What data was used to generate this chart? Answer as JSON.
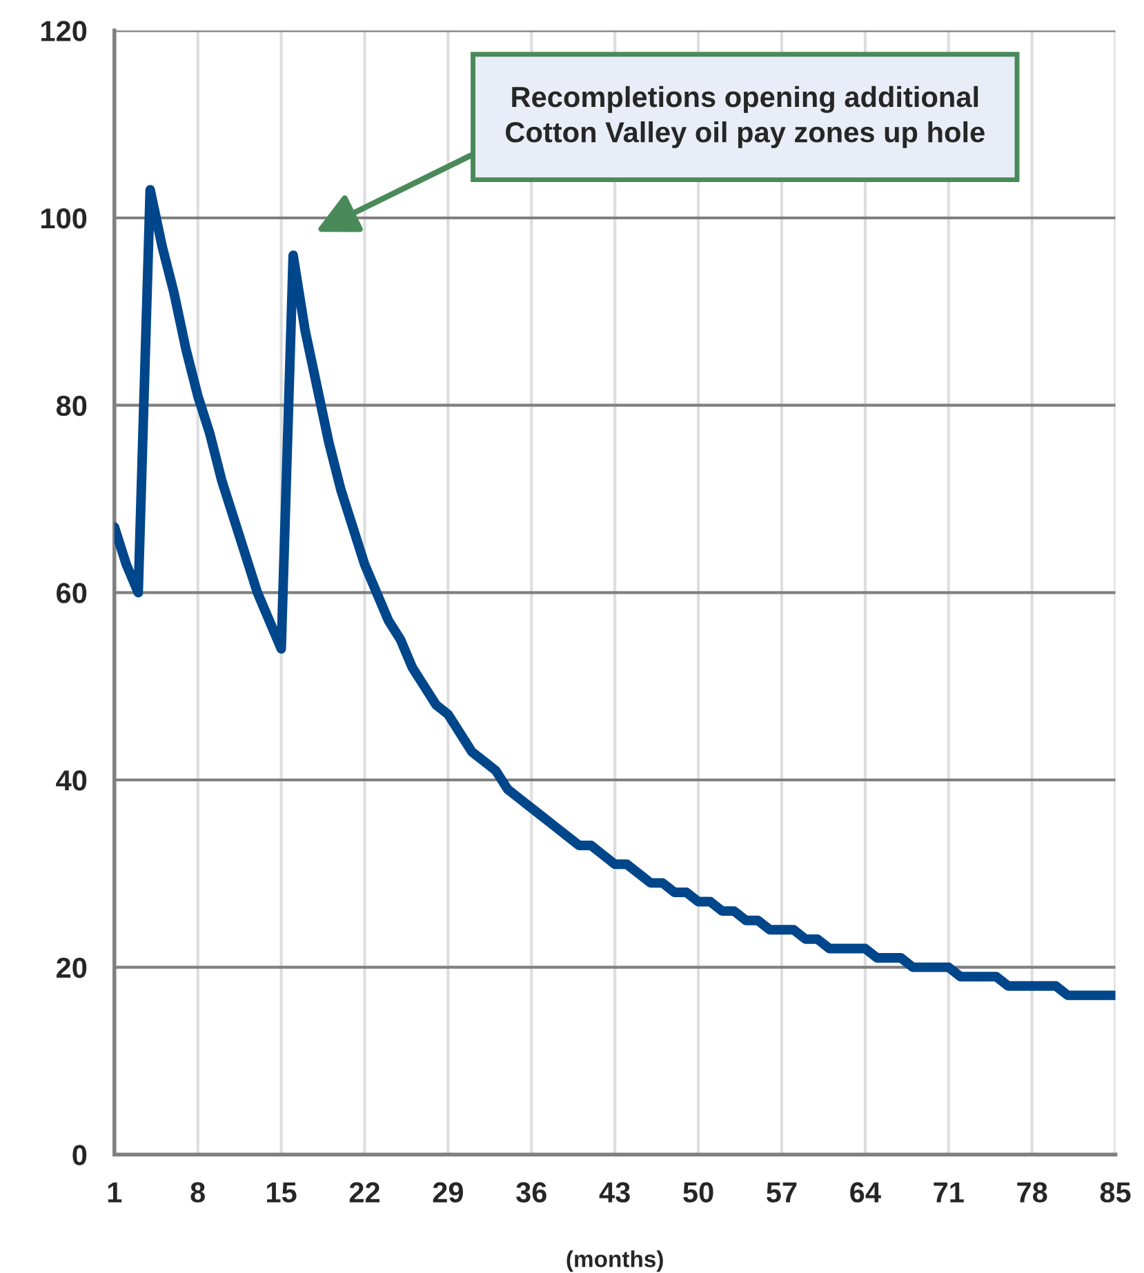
{
  "chart_data": {
    "type": "line",
    "xlabel": "(months)",
    "x": [
      1,
      2,
      3,
      4,
      5,
      6,
      7,
      8,
      9,
      10,
      11,
      12,
      13,
      14,
      15,
      16,
      17,
      18,
      19,
      20,
      21,
      22,
      23,
      24,
      25,
      26,
      27,
      28,
      29,
      30,
      31,
      32,
      33,
      34,
      35,
      36,
      37,
      38,
      39,
      40,
      41,
      42,
      43,
      44,
      45,
      46,
      47,
      48,
      49,
      50,
      51,
      52,
      53,
      54,
      55,
      56,
      57,
      58,
      59,
      60,
      61,
      62,
      63,
      64,
      65,
      66,
      67,
      68,
      69,
      70,
      71,
      72,
      73,
      74,
      75,
      76,
      77,
      78,
      79,
      80,
      81,
      82,
      83,
      84,
      85
    ],
    "series": [
      {
        "color": "#00468b",
        "values": [
          67,
          63,
          60,
          103,
          97,
          92,
          86,
          81,
          77,
          72,
          68,
          64,
          60,
          57,
          54,
          96,
          88,
          82,
          76,
          71,
          67,
          63,
          60,
          57,
          55,
          52,
          50,
          48,
          47,
          45,
          43,
          42,
          41,
          39,
          38,
          37,
          36,
          35,
          34,
          33,
          33,
          32,
          31,
          31,
          30,
          29,
          29,
          28,
          28,
          27,
          27,
          26,
          26,
          25,
          25,
          24,
          24,
          24,
          23,
          23,
          22,
          22,
          22,
          22,
          21,
          21,
          21,
          20,
          20,
          20,
          20,
          19,
          19,
          19,
          19,
          18,
          18,
          18,
          18,
          18,
          17,
          17,
          17,
          17,
          17
        ]
      }
    ],
    "xlim": [
      1,
      85
    ],
    "xticks": [
      1,
      8,
      15,
      22,
      29,
      36,
      43,
      50,
      57,
      64,
      71,
      78,
      85
    ],
    "ylim": [
      0,
      120
    ],
    "yticks": [
      0,
      20,
      40,
      60,
      80,
      100,
      120
    ],
    "grid": true,
    "marker": "none",
    "line_style": "solid",
    "legend": false,
    "annotations": [
      "Recompletions opening additional\nCotton Valley oil pay zones up hole"
    ]
  }
}
